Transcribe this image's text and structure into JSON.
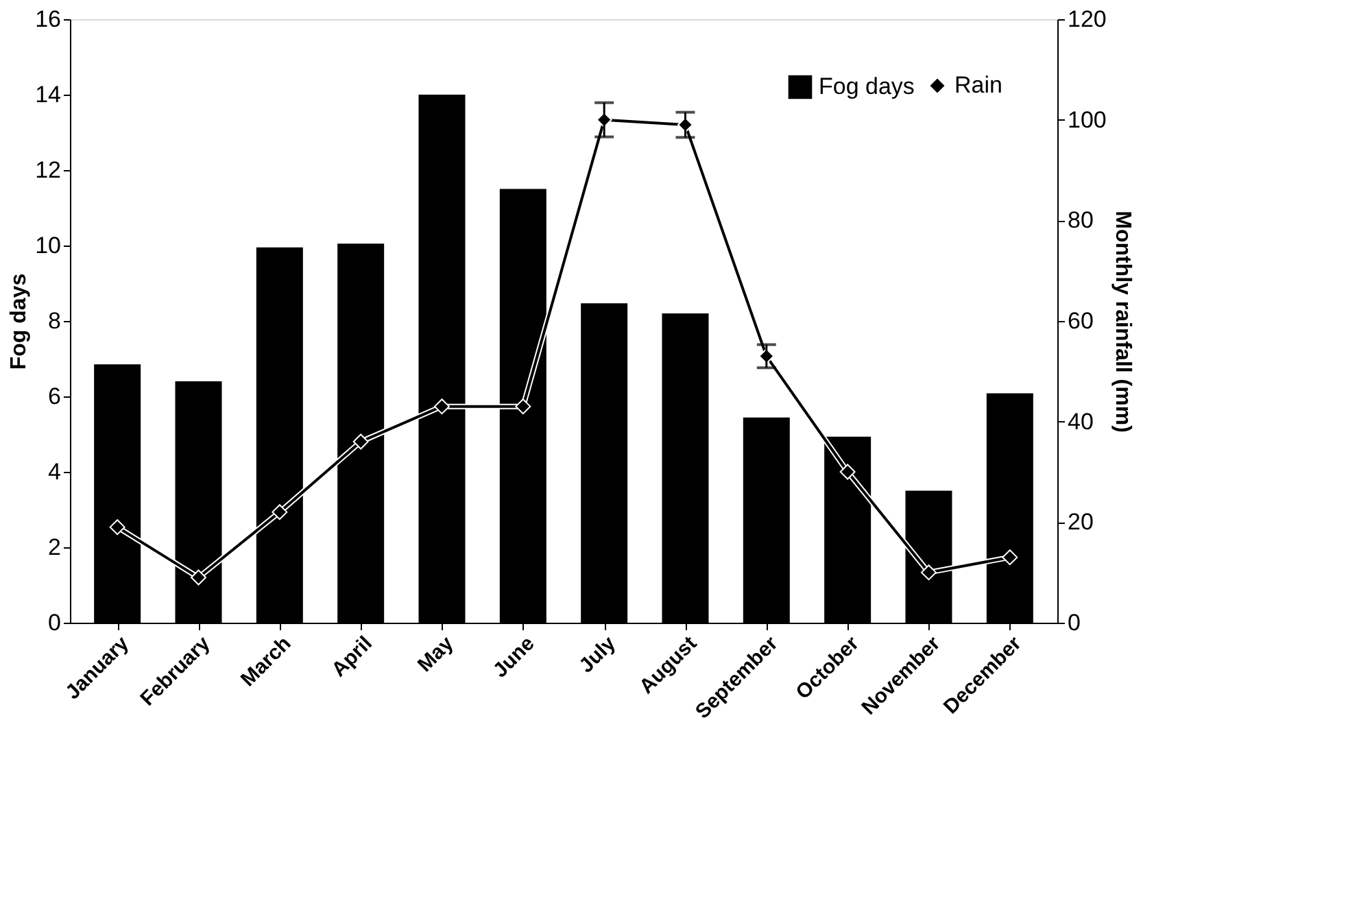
{
  "chart_data": {
    "type": "bar",
    "xlabel": null,
    "ylabel": "Fog days",
    "y2label": "Monthly rainfall (mm)",
    "categories": [
      "January",
      "February",
      "March",
      "April",
      "May",
      "June",
      "July",
      "August",
      "September",
      "October",
      "November",
      "December"
    ],
    "series": [
      {
        "name": "Fog days",
        "type": "bar",
        "color": "#000000",
        "values": [
          6.85,
          6.4,
          9.95,
          10.05,
          14,
          11.5,
          8.47,
          8.2,
          5.44,
          4.93,
          3.5,
          6.08
        ]
      },
      {
        "name": "Rain",
        "type": "line",
        "axis": "y2",
        "color": "#000000",
        "marker": "diamond",
        "values": [
          19,
          9,
          22,
          36,
          43,
          43,
          100,
          99,
          53,
          30,
          10,
          13
        ],
        "errors": [
          null,
          null,
          null,
          null,
          null,
          null,
          3.4,
          2.5,
          2.3,
          null,
          null,
          null
        ]
      }
    ],
    "ylim": [
      0,
      16
    ],
    "yticks": [
      0,
      2,
      4,
      6,
      8,
      10,
      12,
      14,
      16
    ],
    "y2lim": [
      0,
      120
    ],
    "y2ticks": [
      0,
      20,
      40,
      60,
      80,
      100,
      120
    ],
    "legend": "top right",
    "grid": false
  }
}
